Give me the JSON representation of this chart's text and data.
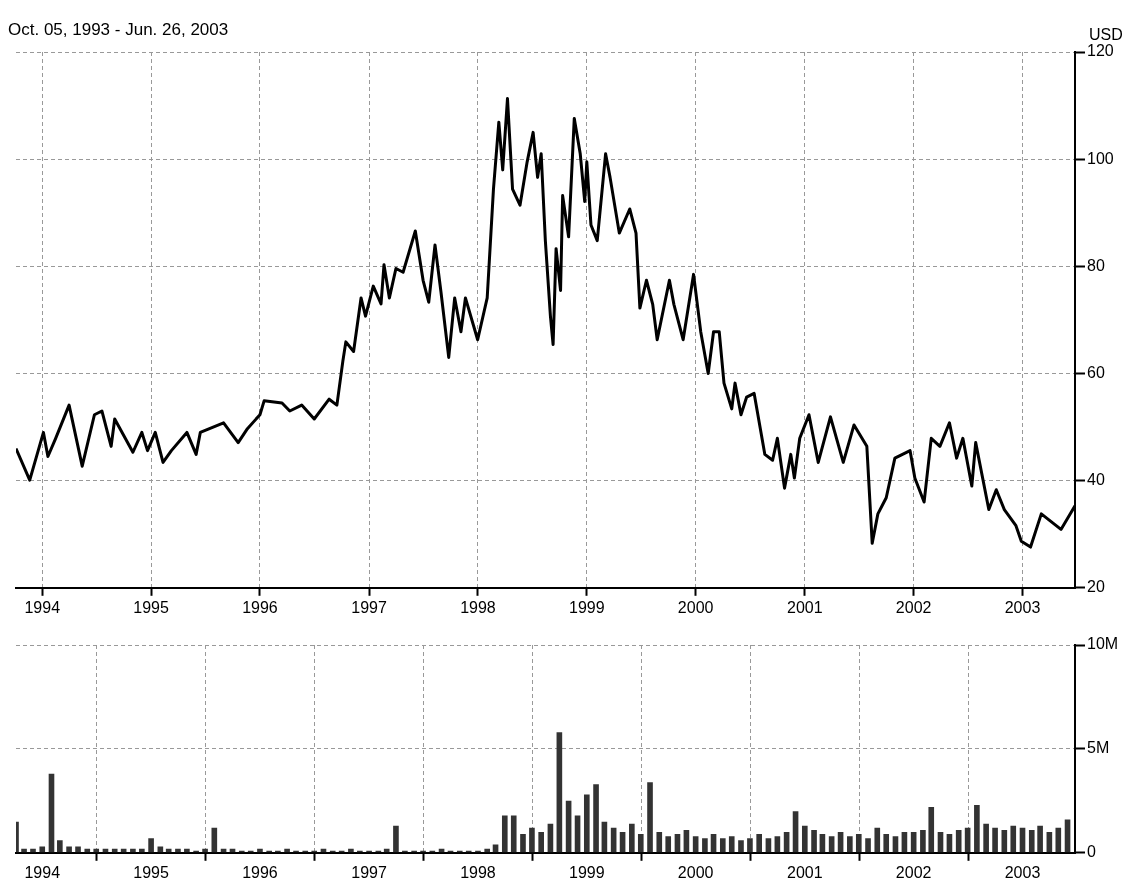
{
  "chart_data": [
    {
      "type": "line",
      "title": "Oct. 05, 1993 - Jun. 26, 2003",
      "ylabel": "USD",
      "color": "#000000",
      "grid": true,
      "xlim": [
        "1993-10-05",
        "2003-06-26"
      ],
      "xticks": [
        "1994",
        "1995",
        "1996",
        "1997",
        "1998",
        "1999",
        "2000",
        "2001",
        "2002",
        "2003"
      ],
      "ylim": [
        20,
        120
      ],
      "yticks": [
        20,
        40,
        60,
        80,
        100,
        120
      ],
      "x": [
        "1993-10-05",
        "1993-11-20",
        "1994-01-05",
        "1994-01-20",
        "1994-02-15",
        "1994-04-01",
        "1994-05-15",
        "1994-06-25",
        "1994-07-20",
        "1994-08-20",
        "1994-09-01",
        "1994-11-01",
        "1994-12-01",
        "1994-12-20",
        "1995-01-15",
        "1995-02-10",
        "1995-03-10",
        "1995-05-01",
        "1995-06-01",
        "1995-06-15",
        "1995-09-01",
        "1995-10-20",
        "1995-11-20",
        "1996-01-01",
        "1996-01-15",
        "1996-03-15",
        "1996-04-10",
        "1996-05-20",
        "1996-07-01",
        "1996-08-20",
        "1996-09-15",
        "1996-10-05",
        "1996-10-15",
        "1996-11-10",
        "1996-12-05",
        "1996-12-20",
        "1997-01-15",
        "1997-02-10",
        "1997-02-20",
        "1997-03-10",
        "1997-04-01",
        "1997-04-25",
        "1997-06-05",
        "1997-07-01",
        "1997-07-20",
        "1997-08-10",
        "1997-08-30",
        "1997-09-25",
        "1997-10-15",
        "1997-11-05",
        "1997-11-20",
        "1997-12-31",
        "1998-02-01",
        "1998-02-22",
        "1998-03-12",
        "1998-03-25",
        "1998-04-10",
        "1998-04-27",
        "1998-05-22",
        "1998-06-15",
        "1998-07-05",
        "1998-07-20",
        "1998-08-01",
        "1998-08-15",
        "1998-09-01",
        "1998-09-10",
        "1998-09-20",
        "1998-10-05",
        "1998-10-12",
        "1998-11-01",
        "1998-11-20",
        "1998-12-10",
        "1998-12-25",
        "1999-01-01",
        "1999-01-15",
        "1999-02-05",
        "1999-03-05",
        "1999-03-20",
        "1999-04-20",
        "1999-05-25",
        "1999-06-15",
        "1999-06-28",
        "1999-07-20",
        "1999-08-10",
        "1999-08-25",
        "1999-10-05",
        "1999-10-20",
        "1999-11-20",
        "1999-12-25",
        "2000-01-18",
        "2000-02-12",
        "2000-03-01",
        "2000-03-20",
        "2000-04-05",
        "2000-05-01",
        "2000-05-12",
        "2000-06-01",
        "2000-06-20",
        "2000-07-15",
        "2000-08-20",
        "2000-09-15",
        "2000-10-01",
        "2000-10-25",
        "2000-11-15",
        "2000-11-27",
        "2000-12-15",
        "2001-01-15",
        "2001-02-15",
        "2001-03-28",
        "2001-05-10",
        "2001-06-15",
        "2001-07-28",
        "2001-08-15",
        "2001-09-03",
        "2001-10-01",
        "2001-10-30",
        "2001-12-20",
        "2002-01-05",
        "2002-02-05",
        "2002-03-01",
        "2002-03-30",
        "2002-05-01",
        "2002-05-25",
        "2002-06-15",
        "2002-07-15",
        "2002-07-28",
        "2002-09-10",
        "2002-10-05",
        "2002-11-01",
        "2002-12-10",
        "2002-12-28",
        "2003-01-28",
        "2003-03-05",
        "2003-05-10",
        "2003-06-26"
      ],
      "values": [
        46.0,
        40.1,
        49,
        44.5,
        47.9,
        54.1,
        42.7,
        52.3,
        53,
        46.4,
        51.5,
        45.3,
        49,
        45.6,
        49,
        43.4,
        45.6,
        49,
        44.9,
        49,
        50.8,
        47.1,
        49.7,
        52.3,
        54.9,
        54.5,
        53,
        54.1,
        51.5,
        55.2,
        54.1,
        62.3,
        65.9,
        64.1,
        74.1,
        70.7,
        76.3,
        73,
        80.3,
        74.1,
        79.6,
        78.9,
        86.6,
        77.4,
        73.3,
        84,
        75.2,
        63,
        74.1,
        67.8,
        74.1,
        66.3,
        74.1,
        94.4,
        106.9,
        98,
        111.3,
        94.4,
        91.4,
        99.5,
        105,
        96.6,
        101,
        84.8,
        70.7,
        65.4,
        83.3,
        75.5,
        93.2,
        85.5,
        107.6,
        101,
        92.1,
        99.5,
        87.7,
        84.8,
        101,
        96.6,
        86.2,
        90.7,
        86.2,
        72.2,
        77.4,
        72.9,
        66.3,
        77.4,
        72.9,
        66.3,
        78.5,
        67.8,
        60,
        67.8,
        67.8,
        58.2,
        53.4,
        58.2,
        52.3,
        55.6,
        56.3,
        44.9,
        43.8,
        47.9,
        38.6,
        44.9,
        40.5,
        47.9,
        52.3,
        43.4,
        51.9,
        43.4,
        50.4,
        46.4,
        28.3,
        33.8,
        36.8,
        44.2,
        45.6,
        40.5,
        36,
        47.9,
        46.4,
        50.8,
        44.2,
        47.9,
        39,
        47.1,
        34.6,
        38.3,
        34.6,
        31.6,
        28.7,
        27.6,
        33.8,
        30.9,
        35.3
      ]
    },
    {
      "type": "bar",
      "color": "#333333",
      "grid": true,
      "xlim": [
        "1993-10-05",
        "2003-06-26"
      ],
      "xticks": [
        "1994",
        "1995",
        "1996",
        "1997",
        "1998",
        "1999",
        "2000",
        "2001",
        "2002",
        "2003"
      ],
      "ylim": [
        0,
        10
      ],
      "yticks": [
        {
          "value": 0,
          "label": "0"
        },
        {
          "value": 5,
          "label": "5M"
        },
        {
          "value": 10,
          "label": "10M"
        }
      ],
      "x": [
        "1993-10-05",
        "1993-11",
        "1993-12",
        "1994-01",
        "1994-02",
        "1994-03",
        "1994-04",
        "1994-05",
        "1994-06",
        "1994-07",
        "1994-08",
        "1994-09",
        "1994-10",
        "1994-11",
        "1994-12",
        "1995-01",
        "1995-02",
        "1995-03",
        "1995-04",
        "1995-05",
        "1995-06",
        "1995-07",
        "1995-08",
        "1995-09",
        "1995-10",
        "1995-11",
        "1995-12",
        "1996-01",
        "1996-02",
        "1996-03",
        "1996-04",
        "1996-05",
        "1996-06",
        "1996-07",
        "1996-08",
        "1996-09",
        "1996-10",
        "1996-11",
        "1996-12",
        "1997-01",
        "1997-02",
        "1997-03",
        "1997-04",
        "1997-05",
        "1997-06",
        "1997-07",
        "1997-08",
        "1997-09",
        "1997-10",
        "1997-11",
        "1997-12",
        "1998-01",
        "1998-02",
        "1998-03",
        "1998-04",
        "1998-05",
        "1998-06",
        "1998-07",
        "1998-08",
        "1998-09",
        "1998-10",
        "1998-11",
        "1998-12",
        "1999-01",
        "1999-02",
        "1999-03",
        "1999-04",
        "1999-05",
        "1999-06",
        "1999-07",
        "1999-08",
        "1999-09",
        "1999-10",
        "1999-11",
        "1999-12",
        "2000-01",
        "2000-02",
        "2000-03",
        "2000-04",
        "2000-05",
        "2000-06",
        "2000-07",
        "2000-08",
        "2000-09",
        "2000-10",
        "2000-11",
        "2000-12",
        "2001-01",
        "2001-02",
        "2001-03",
        "2001-04",
        "2001-05",
        "2001-06",
        "2001-07",
        "2001-08",
        "2001-09",
        "2001-10",
        "2001-11",
        "2001-12",
        "2002-01",
        "2002-02",
        "2002-03",
        "2002-04",
        "2002-05",
        "2002-06",
        "2002-07",
        "2002-08",
        "2002-09",
        "2002-10",
        "2002-11",
        "2002-12",
        "2003-01",
        "2003-02",
        "2003-03",
        "2003-04",
        "2003-05",
        "2003-06"
      ],
      "values": [
        1.5,
        0.2,
        0.2,
        0.3,
        3.8,
        0.6,
        0.3,
        0.3,
        0.2,
        0.2,
        0.2,
        0.2,
        0.2,
        0.2,
        0.2,
        0.7,
        0.3,
        0.2,
        0.2,
        0.2,
        0.1,
        0.2,
        1.2,
        0.2,
        0.2,
        0.1,
        0.1,
        0.2,
        0.1,
        0.1,
        0.2,
        0.1,
        0.1,
        0.1,
        0.2,
        0.1,
        0.1,
        0.2,
        0.1,
        0.1,
        0.1,
        0.2,
        1.3,
        0.1,
        0.1,
        0.1,
        0.1,
        0.2,
        0.1,
        0.1,
        0.1,
        0.1,
        0.2,
        0.4,
        1.8,
        1.8,
        0.9,
        1.2,
        1.0,
        1.4,
        5.8,
        2.5,
        1.8,
        2.8,
        3.3,
        1.5,
        1.2,
        1.0,
        1.4,
        0.9,
        3.4,
        1.0,
        0.8,
        0.9,
        1.1,
        0.8,
        0.7,
        0.9,
        0.7,
        0.8,
        0.6,
        0.7,
        0.9,
        0.7,
        0.8,
        1.0,
        2.0,
        1.3,
        1.1,
        0.9,
        0.8,
        1.0,
        0.8,
        0.9,
        0.7,
        1.2,
        0.9,
        0.8,
        1.0,
        1.0,
        1.1,
        2.2,
        1.0,
        0.9,
        1.1,
        1.2,
        2.3,
        1.4,
        1.2,
        1.1,
        1.3,
        1.2,
        1.1,
        1.3,
        1.0,
        1.2,
        1.6
      ]
    }
  ]
}
